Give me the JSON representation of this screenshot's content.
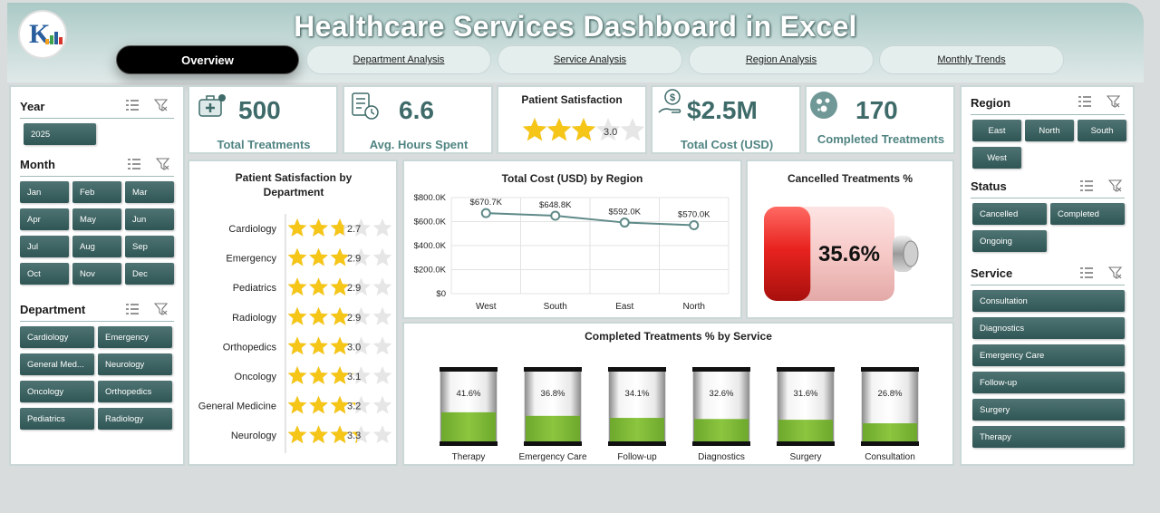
{
  "header": {
    "title": "Healthcare Services Dashboard in Excel"
  },
  "tabs": [
    {
      "label": "Overview"
    },
    {
      "label": "Department Analysis"
    },
    {
      "label": "Service Analysis"
    },
    {
      "label": "Region  Analysis"
    },
    {
      "label": "Monthly Trends"
    }
  ],
  "filters": {
    "year": {
      "title": "Year",
      "items": [
        "2025"
      ]
    },
    "month": {
      "title": "Month",
      "items": [
        "Jan",
        "Feb",
        "Mar",
        "Apr",
        "May",
        "Jun",
        "Jul",
        "Aug",
        "Sep",
        "Oct",
        "Nov",
        "Dec"
      ]
    },
    "department": {
      "title": "Department",
      "items": [
        "Cardiology",
        "Emergency",
        "General Med...",
        "Neurology",
        "Oncology",
        "Orthopedics",
        "Pediatrics",
        "Radiology"
      ]
    },
    "region": {
      "title": "Region",
      "items": [
        "East",
        "North",
        "South",
        "West"
      ]
    },
    "status": {
      "title": "Status",
      "items": [
        "Cancelled",
        "Completed",
        "Ongoing"
      ]
    },
    "service": {
      "title": "Service",
      "items": [
        "Consultation",
        "Diagnostics",
        "Emergency Care",
        "Follow-up",
        "Surgery",
        "Therapy"
      ]
    }
  },
  "kpis": {
    "total_treatments": {
      "value": "500",
      "label": "Total Treatments",
      "icon": "medical-kit-icon"
    },
    "avg_hours": {
      "value": "6.6",
      "label": "Avg. Hours Spent",
      "icon": "clock-clipboard-icon"
    },
    "satisfaction": {
      "title": "Patient Satisfaction",
      "value": "3.0",
      "rating": 3.0,
      "max": 5,
      "icon": "star-icon"
    },
    "total_cost": {
      "value": "$2.5M",
      "label": "Total Cost (USD)",
      "icon": "money-hand-icon"
    },
    "completed": {
      "value": "170",
      "label": "Completed Treatments",
      "icon": "pills-icon"
    }
  },
  "colors": {
    "accent": "#3e6b69",
    "chip": "#3a6160",
    "star": "#f5c518",
    "battery_red": "#e8231f",
    "battery_green": "#8cc63f"
  },
  "chart_data": [
    {
      "type": "bar",
      "title": "Patient Satisfaction by Department",
      "categories": [
        "Cardiology",
        "Emergency",
        "Pediatrics",
        "Radiology",
        "Orthopedics",
        "Oncology",
        "General Medicine",
        "Neurology"
      ],
      "values": [
        2.7,
        2.9,
        2.9,
        2.9,
        3.0,
        3.1,
        3.2,
        3.3
      ],
      "labels": [
        "2.7",
        "2.9",
        "2.9",
        "2.9",
        "3.0",
        "3.1",
        "3.2",
        "3.3"
      ],
      "max": 5
    },
    {
      "type": "line",
      "title": "Total Cost (USD) by Region",
      "categories": [
        "West",
        "South",
        "East",
        "North"
      ],
      "values": [
        670.7,
        648.8,
        592.0,
        570.0
      ],
      "labels": [
        "$670.7K",
        "$648.8K",
        "$592.0K",
        "$570.0K"
      ],
      "ylim": [
        0,
        800
      ],
      "yticks": [
        "$0",
        "$200.0K",
        "$400.0K",
        "$600.0K",
        "$800.0K"
      ],
      "ytick_values": [
        0,
        200,
        400,
        600,
        800
      ],
      "grid": true
    },
    {
      "type": "bar",
      "title": "Cancelled Treatments %",
      "values": [
        35.6
      ],
      "labels": [
        "35.6%"
      ]
    },
    {
      "type": "bar",
      "title": "Completed Treatments % by Service",
      "categories": [
        "Therapy",
        "Emergency Care",
        "Follow-up",
        "Diagnostics",
        "Surgery",
        "Consultation"
      ],
      "values": [
        41.6,
        36.8,
        34.1,
        32.6,
        31.6,
        26.8
      ],
      "labels": [
        "41.6%",
        "36.8%",
        "34.1%",
        "32.6%",
        "31.6%",
        "26.8%"
      ]
    }
  ]
}
